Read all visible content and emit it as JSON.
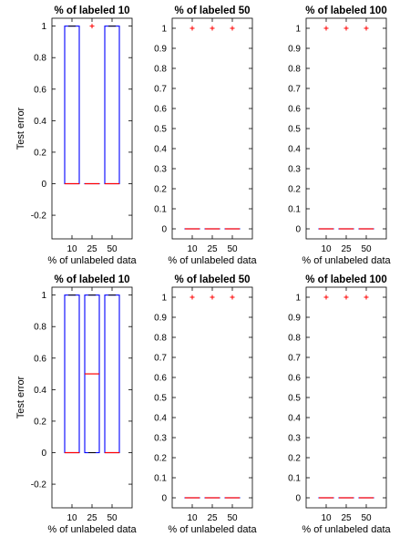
{
  "chart_data": [
    {
      "type": "boxplot",
      "title": "% of labeled 10",
      "xlabel": "% of unlabeled data",
      "ylabel": "Test error",
      "categories": [
        "10",
        "25",
        "50"
      ],
      "ylim": [
        -0.35,
        1.05
      ],
      "yticks": [
        "-0.2",
        "0",
        "0.2",
        "0.4",
        "0.6",
        "0.8",
        "1"
      ],
      "boxes": [
        {
          "q1": 0,
          "median": 0,
          "q3": 1,
          "whisker_low": 0,
          "whisker_high": 1,
          "outliers": []
        },
        {
          "q1": 0,
          "median": 0,
          "q3": 0,
          "whisker_low": 0,
          "whisker_high": 0,
          "outliers": [
            1
          ]
        },
        {
          "q1": 0,
          "median": 0,
          "q3": 1,
          "whisker_low": 0,
          "whisker_high": 1,
          "outliers": []
        }
      ],
      "colors": {
        "box": "#0000ff",
        "median": "#ff0000",
        "outlier": "#ff0000"
      }
    },
    {
      "type": "boxplot",
      "title": "% of labeled 50",
      "xlabel": "% of unlabeled data",
      "ylabel": "",
      "categories": [
        "10",
        "25",
        "50"
      ],
      "ylim": [
        -0.05,
        1.05
      ],
      "yticks": [
        "0",
        "0.1",
        "0.2",
        "0.3",
        "0.4",
        "0.5",
        "0.6",
        "0.7",
        "0.8",
        "0.9",
        "1"
      ],
      "boxes": [
        {
          "q1": 0,
          "median": 0,
          "q3": 0,
          "whisker_low": 0,
          "whisker_high": 0,
          "outliers": [
            1
          ]
        },
        {
          "q1": 0,
          "median": 0,
          "q3": 0,
          "whisker_low": 0,
          "whisker_high": 0,
          "outliers": [
            1
          ]
        },
        {
          "q1": 0,
          "median": 0,
          "q3": 0,
          "whisker_low": 0,
          "whisker_high": 0,
          "outliers": [
            1
          ]
        }
      ],
      "colors": {
        "box": "#0000ff",
        "median": "#ff0000",
        "outlier": "#ff0000"
      }
    },
    {
      "type": "boxplot",
      "title": "% of labeled 100",
      "xlabel": "% of unlabeled data",
      "ylabel": "",
      "categories": [
        "10",
        "25",
        "50"
      ],
      "ylim": [
        -0.05,
        1.05
      ],
      "yticks": [
        "0",
        "0.1",
        "0.2",
        "0.3",
        "0.4",
        "0.5",
        "0.6",
        "0.7",
        "0.8",
        "0.9",
        "1"
      ],
      "boxes": [
        {
          "q1": 0,
          "median": 0,
          "q3": 0,
          "whisker_low": 0,
          "whisker_high": 0,
          "outliers": [
            1
          ]
        },
        {
          "q1": 0,
          "median": 0,
          "q3": 0,
          "whisker_low": 0,
          "whisker_high": 0,
          "outliers": [
            1
          ]
        },
        {
          "q1": 0,
          "median": 0,
          "q3": 0,
          "whisker_low": 0,
          "whisker_high": 0,
          "outliers": [
            1
          ]
        }
      ],
      "colors": {
        "box": "#0000ff",
        "median": "#ff0000",
        "outlier": "#ff0000"
      }
    },
    {
      "type": "boxplot",
      "title": "% of labeled 10",
      "xlabel": "% of unlabeled data",
      "ylabel": "Test error",
      "categories": [
        "10",
        "25",
        "50"
      ],
      "ylim": [
        -0.35,
        1.05
      ],
      "yticks": [
        "-0.2",
        "0",
        "0.2",
        "0.4",
        "0.6",
        "0.8",
        "1"
      ],
      "boxes": [
        {
          "q1": 0,
          "median": 0,
          "q3": 1,
          "whisker_low": 0,
          "whisker_high": 1,
          "outliers": []
        },
        {
          "q1": 0,
          "median": 0.5,
          "q3": 1,
          "whisker_low": 0,
          "whisker_high": 1,
          "outliers": []
        },
        {
          "q1": 0,
          "median": 0,
          "q3": 1,
          "whisker_low": 0,
          "whisker_high": 1,
          "outliers": []
        }
      ],
      "colors": {
        "box": "#0000ff",
        "median": "#ff0000",
        "outlier": "#ff0000"
      }
    },
    {
      "type": "boxplot",
      "title": "% of labeled 50",
      "xlabel": "% of unlabeled data",
      "ylabel": "",
      "categories": [
        "10",
        "25",
        "50"
      ],
      "ylim": [
        -0.05,
        1.05
      ],
      "yticks": [
        "0",
        "0.1",
        "0.2",
        "0.3",
        "0.4",
        "0.5",
        "0.6",
        "0.7",
        "0.8",
        "0.9",
        "1"
      ],
      "boxes": [
        {
          "q1": 0,
          "median": 0,
          "q3": 0,
          "whisker_low": 0,
          "whisker_high": 0,
          "outliers": [
            1
          ]
        },
        {
          "q1": 0,
          "median": 0,
          "q3": 0,
          "whisker_low": 0,
          "whisker_high": 0,
          "outliers": [
            1
          ]
        },
        {
          "q1": 0,
          "median": 0,
          "q3": 0,
          "whisker_low": 0,
          "whisker_high": 0,
          "outliers": [
            1
          ]
        }
      ],
      "colors": {
        "box": "#0000ff",
        "median": "#ff0000",
        "outlier": "#ff0000"
      }
    },
    {
      "type": "boxplot",
      "title": "% of labeled 100",
      "xlabel": "% of unlabeled data",
      "ylabel": "",
      "categories": [
        "10",
        "25",
        "50"
      ],
      "ylim": [
        -0.05,
        1.05
      ],
      "yticks": [
        "0",
        "0.1",
        "0.2",
        "0.3",
        "0.4",
        "0.5",
        "0.6",
        "0.7",
        "0.8",
        "0.9",
        "1"
      ],
      "boxes": [
        {
          "q1": 0,
          "median": 0,
          "q3": 0,
          "whisker_low": 0,
          "whisker_high": 0,
          "outliers": [
            1
          ]
        },
        {
          "q1": 0,
          "median": 0,
          "q3": 0,
          "whisker_low": 0,
          "whisker_high": 0,
          "outliers": [
            1
          ]
        },
        {
          "q1": 0,
          "median": 0,
          "q3": 0,
          "whisker_low": 0,
          "whisker_high": 0,
          "outliers": [
            1
          ]
        }
      ],
      "colors": {
        "box": "#0000ff",
        "median": "#ff0000",
        "outlier": "#ff0000"
      }
    }
  ]
}
